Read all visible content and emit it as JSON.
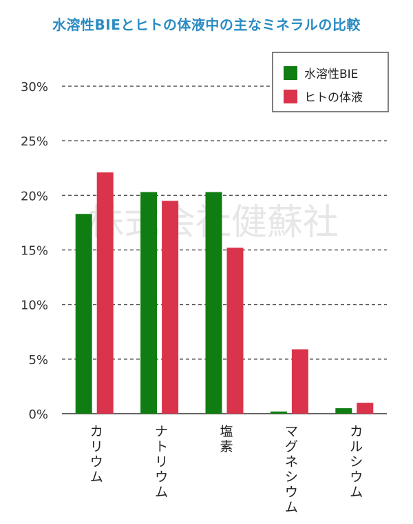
{
  "title": "水溶性BIEとヒトの体液中の主なミネラルの比較",
  "watermark": "株式会社健蘇社",
  "chart_data": {
    "type": "bar",
    "title": "水溶性BIEとヒトの体液中の主なミネラルの比較",
    "xlabel": "",
    "ylabel": "",
    "categories": [
      "カリウム",
      "ナトリウム",
      "塩素",
      "マグネシウム",
      "カルシウム"
    ],
    "series": [
      {
        "name": "水溶性BIE",
        "color": "#0f7d12",
        "values": [
          18.3,
          20.3,
          20.3,
          0.2,
          0.5
        ]
      },
      {
        "name": "ヒトの体液",
        "color": "#d9344b",
        "values": [
          22.1,
          19.5,
          15.2,
          5.9,
          1.0
        ]
      }
    ],
    "ylim": [
      0,
      30
    ],
    "yticks": [
      0,
      5,
      10,
      15,
      20,
      25,
      30
    ],
    "ytick_labels": [
      "0%",
      "5%",
      "10%",
      "15%",
      "20%",
      "25%",
      "30%"
    ],
    "grid": true,
    "legend": "top-right"
  }
}
